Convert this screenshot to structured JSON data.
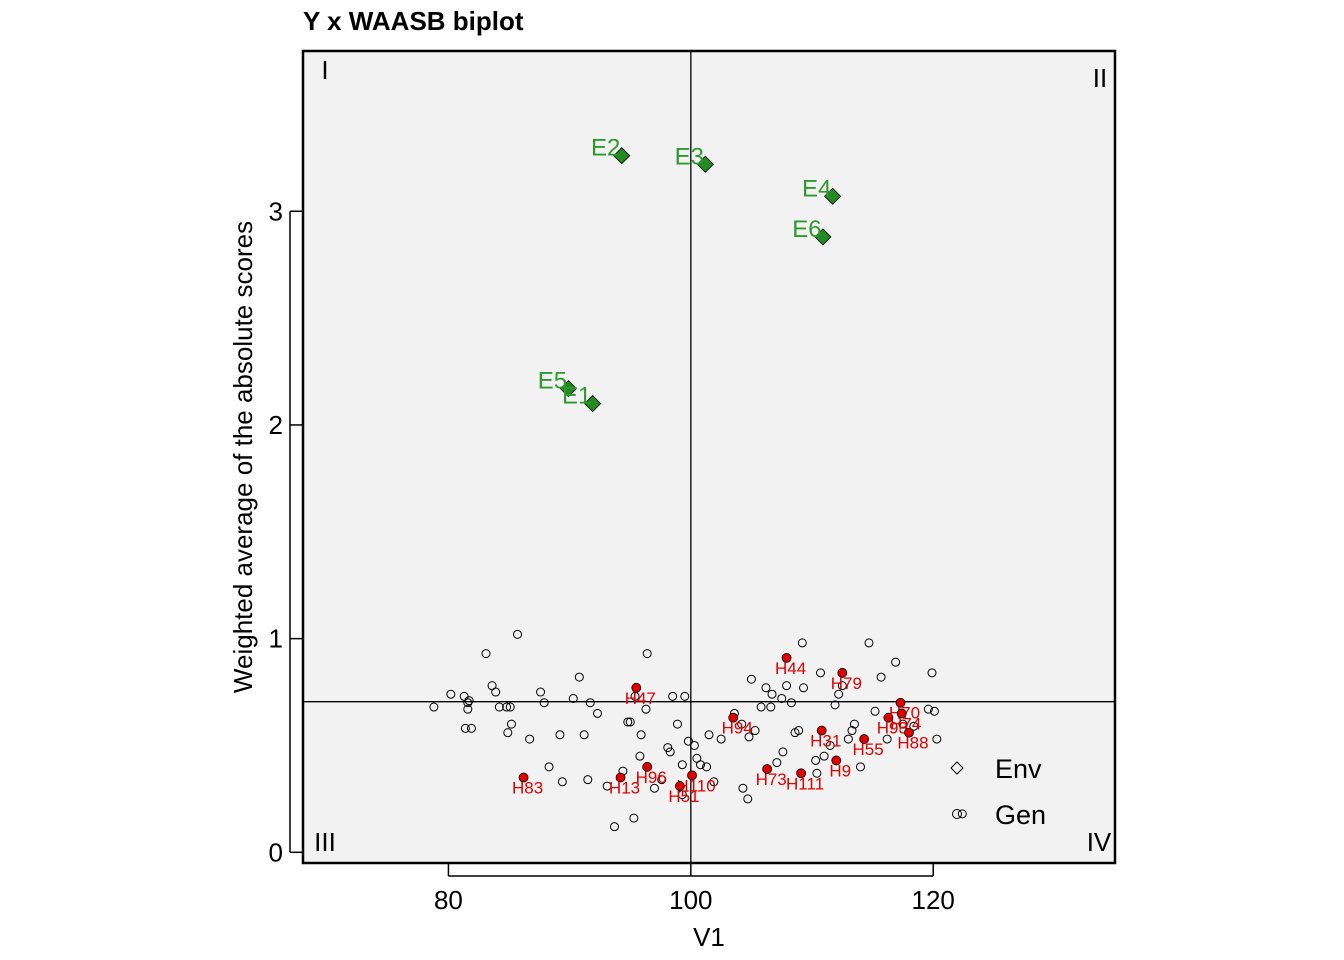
{
  "chart_data": {
    "type": "scatter",
    "title": "Y x WAASB biplot",
    "xlabel": "V1",
    "ylabel": "Weighted average of the absolute scores",
    "xlim": [
      68,
      135
    ],
    "ylim": [
      -0.05,
      3.75
    ],
    "xticks": [
      80,
      100,
      120
    ],
    "yticks": [
      0,
      1,
      2,
      3
    ],
    "grid": false,
    "mean_x": 100,
    "mean_y": 0.705,
    "quadrant_labels": [
      "I",
      "II",
      "III",
      "IV"
    ],
    "legend": {
      "position": "bottom-right",
      "entries": [
        {
          "label": "Env",
          "marker": "diamond"
        },
        {
          "label": "Gen",
          "marker": "circle"
        }
      ]
    },
    "colors": {
      "env": "#228B22",
      "env_label": "#2E9A2E",
      "gen_labeled": "#E00000",
      "gen_unlabeled_edge": "#000000",
      "panel_background": "#F2F2F2"
    },
    "environments": [
      {
        "name": "E2",
        "x": 94.3,
        "y": 3.26
      },
      {
        "name": "E3",
        "x": 101.2,
        "y": 3.22
      },
      {
        "name": "E4",
        "x": 111.7,
        "y": 3.07
      },
      {
        "name": "E6",
        "x": 110.9,
        "y": 2.88
      },
      {
        "name": "E5",
        "x": 89.9,
        "y": 2.17
      },
      {
        "name": "E1",
        "x": 91.9,
        "y": 2.1
      }
    ],
    "labeled_genotypes": [
      {
        "name": "H44",
        "x": 107.9,
        "y": 0.91
      },
      {
        "name": "H79",
        "x": 112.5,
        "y": 0.84
      },
      {
        "name": "H47",
        "x": 95.5,
        "y": 0.77
      },
      {
        "name": "H70",
        "x": 117.3,
        "y": 0.7
      },
      {
        "name": "H74",
        "x": 117.4,
        "y": 0.65
      },
      {
        "name": "H93",
        "x": 116.3,
        "y": 0.63
      },
      {
        "name": "H94",
        "x": 103.5,
        "y": 0.63
      },
      {
        "name": "H31",
        "x": 110.8,
        "y": 0.57
      },
      {
        "name": "H88",
        "x": 118.0,
        "y": 0.56
      },
      {
        "name": "H55",
        "x": 114.3,
        "y": 0.53
      },
      {
        "name": "H9",
        "x": 112.0,
        "y": 0.43
      },
      {
        "name": "H96",
        "x": 96.4,
        "y": 0.4
      },
      {
        "name": "H73",
        "x": 106.3,
        "y": 0.39
      },
      {
        "name": "H111",
        "x": 109.1,
        "y": 0.37
      },
      {
        "name": "H110",
        "x": 100.1,
        "y": 0.36
      },
      {
        "name": "H83",
        "x": 86.2,
        "y": 0.35
      },
      {
        "name": "H13",
        "x": 94.2,
        "y": 0.35
      },
      {
        "name": "H51",
        "x": 99.1,
        "y": 0.31
      }
    ],
    "other_genotypes": [
      [
        78.8,
        0.68
      ],
      [
        80.2,
        0.74
      ],
      [
        81.3,
        0.73
      ],
      [
        81.6,
        0.7
      ],
      [
        81.6,
        0.67
      ],
      [
        81.4,
        0.58
      ],
      [
        81.9,
        0.58
      ],
      [
        81.7,
        0.71
      ],
      [
        83.1,
        0.93
      ],
      [
        83.6,
        0.78
      ],
      [
        83.9,
        0.75
      ],
      [
        84.2,
        0.68
      ],
      [
        84.8,
        0.68
      ],
      [
        85.1,
        0.68
      ],
      [
        84.9,
        0.56
      ],
      [
        85.2,
        0.6
      ],
      [
        85.7,
        1.02
      ],
      [
        86.7,
        0.53
      ],
      [
        87.6,
        0.75
      ],
      [
        87.9,
        0.7
      ],
      [
        88.3,
        0.4
      ],
      [
        89.2,
        0.55
      ],
      [
        89.4,
        0.33
      ],
      [
        90.3,
        0.72
      ],
      [
        90.8,
        0.82
      ],
      [
        91.2,
        0.55
      ],
      [
        91.5,
        0.34
      ],
      [
        91.7,
        0.7
      ],
      [
        92.3,
        0.65
      ],
      [
        93.1,
        0.31
      ],
      [
        93.7,
        0.12
      ],
      [
        94.4,
        0.38
      ],
      [
        94.8,
        0.61
      ],
      [
        95.0,
        0.61
      ],
      [
        95.3,
        0.16
      ],
      [
        95.4,
        0.73
      ],
      [
        95.9,
        0.55
      ],
      [
        95.8,
        0.45
      ],
      [
        96.3,
        0.67
      ],
      [
        96.4,
        0.93
      ],
      [
        97.0,
        0.3
      ],
      [
        97.6,
        0.34
      ],
      [
        98.1,
        0.49
      ],
      [
        98.3,
        0.47
      ],
      [
        98.5,
        0.73
      ],
      [
        98.9,
        0.6
      ],
      [
        99.3,
        0.41
      ],
      [
        99.5,
        0.73
      ],
      [
        99.3,
        0.27
      ],
      [
        99.8,
        0.52
      ],
      [
        100.3,
        0.5
      ],
      [
        100.5,
        0.44
      ],
      [
        100.8,
        0.41
      ],
      [
        101.3,
        0.4
      ],
      [
        101.5,
        0.55
      ],
      [
        101.9,
        0.33
      ],
      [
        102.5,
        0.53
      ],
      [
        103.6,
        0.65
      ],
      [
        104.2,
        0.6
      ],
      [
        104.3,
        0.3
      ],
      [
        104.7,
        0.25
      ],
      [
        104.8,
        0.54
      ],
      [
        105.0,
        0.81
      ],
      [
        105.3,
        0.57
      ],
      [
        105.8,
        0.68
      ],
      [
        106.2,
        0.77
      ],
      [
        106.6,
        0.68
      ],
      [
        106.7,
        0.74
      ],
      [
        107.1,
        0.42
      ],
      [
        107.5,
        0.72
      ],
      [
        107.6,
        0.47
      ],
      [
        107.9,
        0.78
      ],
      [
        108.3,
        0.7
      ],
      [
        108.6,
        0.56
      ],
      [
        108.9,
        0.57
      ],
      [
        109.2,
        0.98
      ],
      [
        109.3,
        0.77
      ],
      [
        110.3,
        0.43
      ],
      [
        110.4,
        0.37
      ],
      [
        110.7,
        0.84
      ],
      [
        111.0,
        0.45
      ],
      [
        111.5,
        0.5
      ],
      [
        111.9,
        0.69
      ],
      [
        112.2,
        0.74
      ],
      [
        112.5,
        0.78
      ],
      [
        113.0,
        0.53
      ],
      [
        113.3,
        0.57
      ],
      [
        113.5,
        0.6
      ],
      [
        114.0,
        0.4
      ],
      [
        114.7,
        0.98
      ],
      [
        115.2,
        0.66
      ],
      [
        115.7,
        0.82
      ],
      [
        116.2,
        0.53
      ],
      [
        116.9,
        0.89
      ],
      [
        117.5,
        0.6
      ],
      [
        118.4,
        0.59
      ],
      [
        119.6,
        0.67
      ],
      [
        119.9,
        0.84
      ],
      [
        120.1,
        0.66
      ],
      [
        120.3,
        0.53
      ],
      [
        122.4,
        0.18
      ]
    ]
  }
}
